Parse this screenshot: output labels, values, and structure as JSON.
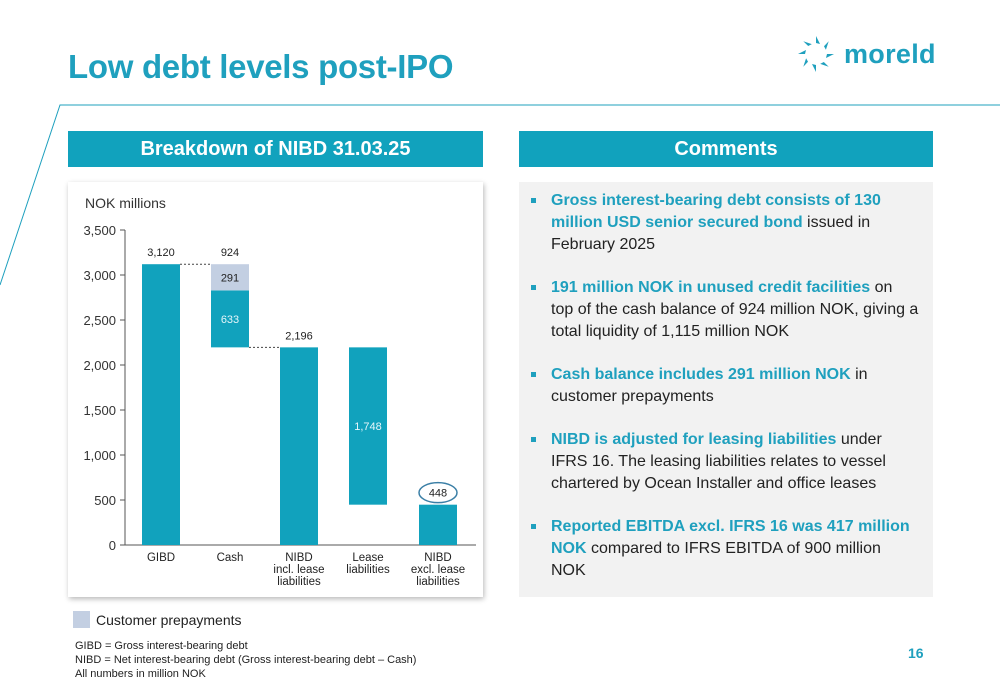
{
  "slide": {
    "title": "Low debt levels post-IPO",
    "brand": "moreld",
    "page_number": "16"
  },
  "left_header": "Breakdown of NIBD 31.03.25",
  "right_header": "Comments",
  "chart_data": {
    "type": "bar",
    "subtype": "waterfall",
    "unit_label": "NOK millions",
    "ylim": [
      0,
      3500
    ],
    "yticks": [
      "0",
      "500",
      "1,000",
      "1,500",
      "2,000",
      "2,500",
      "3,000",
      "3,500"
    ],
    "ytick_values": [
      0,
      500,
      1000,
      1500,
      2000,
      2500,
      3000,
      3500
    ],
    "categories": [
      [
        "GIBD"
      ],
      [
        "Cash"
      ],
      [
        "NIBD",
        "incl. lease",
        "liabilities"
      ],
      [
        "Lease",
        "liabilities"
      ],
      [
        "NIBD",
        "excl. lease",
        "liabilities"
      ]
    ],
    "bars": [
      {
        "category_index": 0,
        "base": 0,
        "top": 3120,
        "label": "3,120",
        "label_position": "above",
        "series": "main"
      },
      {
        "category_index": 1,
        "base": 2196,
        "top": 2829,
        "label": "633",
        "label_position": "inside",
        "series": "main"
      },
      {
        "category_index": 1,
        "base": 2829,
        "top": 3120,
        "label": "291",
        "label_position": "inside",
        "series": "customer_prepayments"
      },
      {
        "category_index": 2,
        "base": 0,
        "top": 2196,
        "label": "2,196",
        "label_position": "above",
        "series": "main"
      },
      {
        "category_index": 3,
        "base": 448,
        "top": 2196,
        "label": "1,748",
        "label_position": "inside",
        "series": "main"
      },
      {
        "category_index": 4,
        "base": 0,
        "top": 448,
        "label": "448",
        "label_position": "highlight",
        "series": "main"
      }
    ],
    "totals": [
      {
        "category_index": 1,
        "value": 3120,
        "label": "924"
      }
    ],
    "connectors": [
      {
        "from": 0,
        "to": 1,
        "value": 3120
      },
      {
        "from": 1,
        "to": 2,
        "value": 2196
      }
    ],
    "series_colors": {
      "main": "#11a2bd",
      "customer_prepayments": "#c3cfe2"
    },
    "legend": [
      {
        "label": "Customer prepayments",
        "color": "#c3cfe2"
      }
    ],
    "grid": false
  },
  "comments": [
    {
      "highlight": "Gross interest-bearing debt consists of 130 million USD senior secured bond",
      "rest": " issued in February 2025"
    },
    {
      "highlight": "191 million NOK in unused credit facilities",
      "rest": " on top of the cash balance of 924 million NOK, giving a total liquidity of 1,115 million NOK"
    },
    {
      "highlight": "Cash balance includes 291 million NOK",
      "rest": " in customer prepayments"
    },
    {
      "highlight": "NIBD is adjusted for leasing liabilities",
      "rest": " under IFRS 16. The leasing liabilities relates to vessel chartered by Ocean Installer and office leases"
    },
    {
      "highlight": "Reported EBITDA excl. IFRS 16 was 417 million NOK",
      "rest": " compared to IFRS EBITDA of 900 million NOK"
    }
  ],
  "footnotes": [
    "GIBD = Gross interest-bearing debt",
    "NIBD = Net interest-bearing debt (Gross interest-bearing debt – Cash)",
    "All numbers in million NOK"
  ]
}
